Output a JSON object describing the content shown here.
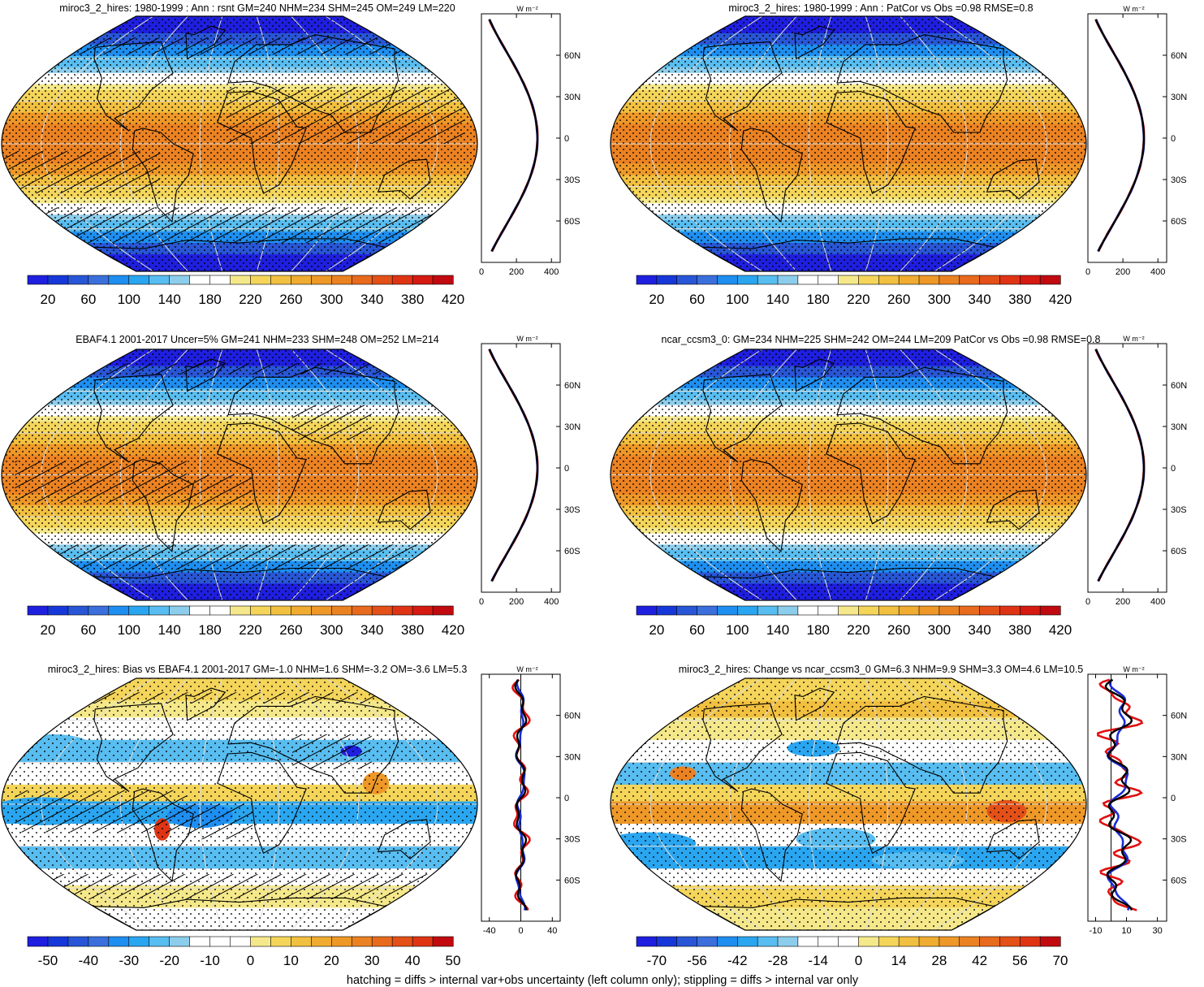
{
  "footer": "hatching = diffs > internal var+obs uncertainty (left column only); stippling = diffs > internal var only",
  "colors": {
    "abs_scale": [
      "#1f1fe0",
      "#1738d8",
      "#2956d6",
      "#3a6fdc",
      "#1e8ef0",
      "#2aa6f0",
      "#58bdf0",
      "#8ccdec",
      "#ffffff",
      "#ffffff",
      "#f5e88a",
      "#f4d55a",
      "#f2c040",
      "#f0ac30",
      "#ee9828",
      "#eb8222",
      "#e86a1c",
      "#e35018",
      "#df3414",
      "#d51a12",
      "#c10a10"
    ],
    "diff_scale": [
      "#1f1fe0",
      "#1738d8",
      "#2956d6",
      "#3a6fdc",
      "#1e8ef0",
      "#2aa6f0",
      "#58bdf0",
      "#8ccdec",
      "#ffffff",
      "#ffffff",
      "#ffffff",
      "#f5e88a",
      "#f4d55a",
      "#f2c040",
      "#f0ac30",
      "#ee9828",
      "#eb8222",
      "#e86a1c",
      "#e35018",
      "#df3414",
      "#c10a10"
    ],
    "model_line": "#e01010",
    "obs_line": "#1a2bd6",
    "mean_line": "#000000"
  },
  "panels": [
    {
      "title": "miroc3_2_hires: 1980-1999 : Ann : rsnt GM=240 NHM=234 SHM=245 OM=249 LM=220",
      "field": "abs",
      "hatch": "heavy",
      "stipple": "dense",
      "colorbar_labels": [
        "20",
        "60",
        "100",
        "140",
        "180",
        "220",
        "260",
        "300",
        "340",
        "380",
        "420"
      ],
      "zonal": {
        "xlim": [
          0,
          450
        ],
        "xticks": [
          "0",
          "200",
          "400"
        ],
        "lat_ticks": [
          "60N",
          "30N",
          "0",
          "30S",
          "60S"
        ],
        "unit": "W m⁻²"
      }
    },
    {
      "title": "miroc3_2_hires: 1980-1999 : Ann : PatCor vs Obs =0.98 RMSE=0.8",
      "field": "abs",
      "hatch": "none",
      "stipple": "dense",
      "colorbar_labels": [
        "20",
        "60",
        "100",
        "140",
        "180",
        "220",
        "260",
        "300",
        "340",
        "380",
        "420"
      ],
      "zonal": {
        "xlim": [
          0,
          450
        ],
        "xticks": [
          "0",
          "200",
          "400"
        ],
        "lat_ticks": [
          "60N",
          "30N",
          "0",
          "30S",
          "60S"
        ],
        "unit": "W m⁻²"
      }
    },
    {
      "title": "EBAF4.1 2001-2017 Uncer=5% GM=241 NHM=233 SHM=248 OM=252 LM=214",
      "field": "abs",
      "hatch": "medium",
      "stipple": "dense",
      "colorbar_labels": [
        "20",
        "60",
        "100",
        "140",
        "180",
        "220",
        "260",
        "300",
        "340",
        "380",
        "420"
      ],
      "zonal": {
        "xlim": [
          0,
          450
        ],
        "xticks": [
          "0",
          "200",
          "400"
        ],
        "lat_ticks": [
          "60N",
          "30N",
          "0",
          "30S",
          "60S"
        ],
        "unit": "W m⁻²"
      }
    },
    {
      "title": "ncar_ccsm3_0: GM=234 NHM=225 SHM=242 OM=244 LM=209 PatCor vs Obs =0.98 RMSE=0.8",
      "field": "abs",
      "hatch": "none",
      "stipple": "dense",
      "colorbar_labels": [
        "20",
        "60",
        "100",
        "140",
        "180",
        "220",
        "260",
        "300",
        "340",
        "380",
        "420"
      ],
      "zonal": {
        "xlim": [
          0,
          450
        ],
        "xticks": [
          "0",
          "200",
          "400"
        ],
        "lat_ticks": [
          "60N",
          "30N",
          "0",
          "30S",
          "60S"
        ],
        "unit": "W m⁻²"
      }
    },
    {
      "title": "miroc3_2_hires: Bias vs EBAF4.1 2001-2017 GM=-1.0 NHM=1.6 SHM=-3.2 OM=-3.6 LM=5.3",
      "field": "bias",
      "hatch": "medium",
      "stipple": "medium",
      "colorbar_labels": [
        "-50",
        "-40",
        "-30",
        "-20",
        "-10",
        "0",
        "10",
        "20",
        "30",
        "40",
        "50"
      ],
      "zonal": {
        "xlim": [
          -50,
          50
        ],
        "xticks": [
          "-40",
          "0",
          "40"
        ],
        "lat_ticks": [
          "60N",
          "30N",
          "0",
          "30S",
          "60S"
        ],
        "unit": "W m⁻²"
      }
    },
    {
      "title": "miroc3_2_hires: Change vs ncar_ccsm3_0 GM=6.3 NHM=9.9 SHM=3.3 OM=4.6 LM=10.5",
      "field": "change",
      "hatch": "none",
      "stipple": "medium",
      "colorbar_labels": [
        "-70",
        "-56",
        "-42",
        "-28",
        "-14",
        "0",
        "14",
        "28",
        "42",
        "56",
        "70"
      ],
      "zonal": {
        "xlim": [
          -15,
          36
        ],
        "xticks": [
          "-10",
          "10",
          "30"
        ],
        "lat_ticks": [
          "60N",
          "30N",
          "0",
          "30S",
          "60S"
        ],
        "unit": "W m⁻²"
      }
    }
  ]
}
